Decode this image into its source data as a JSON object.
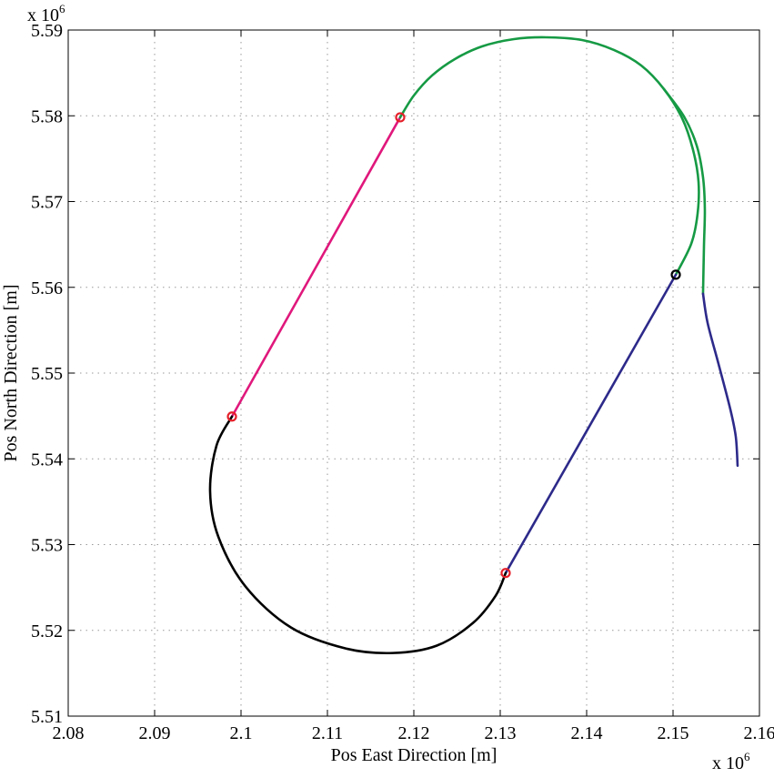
{
  "chart_data": {
    "type": "line",
    "title": "",
    "xlabel": "Pos East Direction [m]",
    "ylabel": "Pos North Direction [m]",
    "x_multiplier": "x 10",
    "x_multiplier_exp": "6",
    "y_multiplier": "x 10",
    "y_multiplier_exp": "6",
    "xlim": [
      2.08,
      2.16
    ],
    "ylim": [
      5.51,
      5.59
    ],
    "xticks": [
      "2.08",
      "2.09",
      "2.1",
      "2.11",
      "2.12",
      "2.13",
      "2.14",
      "2.15",
      "2.16"
    ],
    "yticks": [
      "5.51",
      "5.52",
      "5.53",
      "5.54",
      "5.55",
      "5.56",
      "5.57",
      "5.58",
      "5.59"
    ],
    "grid": true,
    "series": [
      {
        "color": "#e0187c",
        "points": [
          [
            2.09895,
            5.54493
          ],
          [
            2.11842,
            5.57982
          ]
        ]
      },
      {
        "color": "#169a44",
        "points": [
          [
            2.11842,
            5.57982
          ],
          [
            2.12,
            5.58236
          ],
          [
            2.12211,
            5.5847
          ],
          [
            2.12474,
            5.58661
          ],
          [
            2.12789,
            5.58809
          ],
          [
            2.13158,
            5.58894
          ],
          [
            2.13526,
            5.58915
          ],
          [
            2.13947,
            5.58883
          ],
          [
            2.14316,
            5.58767
          ],
          [
            2.14632,
            5.58586
          ],
          [
            2.14895,
            5.58311
          ],
          [
            2.15105,
            5.57971
          ],
          [
            2.15232,
            5.576
          ],
          [
            2.15295,
            5.57229
          ],
          [
            2.15284,
            5.56858
          ],
          [
            2.15211,
            5.56508
          ],
          [
            2.15032,
            5.56147
          ]
        ]
      },
      {
        "color": "#169a44",
        "points": [
          [
            2.14895,
            5.58311
          ],
          [
            2.15126,
            5.57993
          ],
          [
            2.15274,
            5.57653
          ],
          [
            2.15347,
            5.57282
          ],
          [
            2.15368,
            5.56911
          ],
          [
            2.15358,
            5.56487
          ],
          [
            2.15347,
            5.55925
          ]
        ]
      },
      {
        "color": "#2d2a8a",
        "points": [
          [
            2.15347,
            5.55925
          ],
          [
            2.154,
            5.55585
          ],
          [
            2.15526,
            5.55108
          ],
          [
            2.15663,
            5.54578
          ],
          [
            2.15726,
            5.5426
          ],
          [
            2.15747,
            5.5392
          ]
        ]
      },
      {
        "color": "#2d2a8a",
        "points": [
          [
            2.13063,
            5.52669
          ],
          [
            2.15032,
            5.56147
          ]
        ]
      },
      {
        "color": "#000000",
        "points": [
          [
            2.09895,
            5.54493
          ],
          [
            2.09716,
            5.54154
          ],
          [
            2.09642,
            5.53624
          ],
          [
            2.09737,
            5.53093
          ],
          [
            2.10053,
            5.5251
          ],
          [
            2.10579,
            5.52033
          ],
          [
            2.11211,
            5.51789
          ],
          [
            2.11758,
            5.51736
          ],
          [
            2.12263,
            5.51821
          ],
          [
            2.12684,
            5.52086
          ],
          [
            2.12947,
            5.52404
          ],
          [
            2.13063,
            5.52669
          ]
        ]
      }
    ],
    "markers": [
      {
        "x": 2.11842,
        "y": 5.57982,
        "color": "#e5202a"
      },
      {
        "x": 2.09895,
        "y": 5.54493,
        "color": "#e5202a"
      },
      {
        "x": 2.13063,
        "y": 5.52669,
        "color": "#e5202a"
      },
      {
        "x": 2.15032,
        "y": 5.56147,
        "color": "#000000"
      }
    ]
  }
}
